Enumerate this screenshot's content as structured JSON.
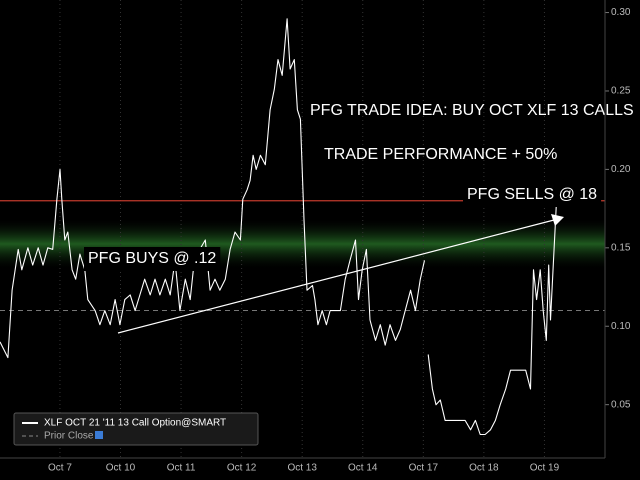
{
  "chart_data": {
    "type": "line",
    "annotations": [
      "PFG TRADE IDEA: BUY OCT XLF 13 CALLS",
      "TRADE PERFORMANCE + 50%",
      "PFG SELLS @ 18",
      "PFG BUYS @ .12"
    ],
    "xlim": [
      -0.99,
      9.0
    ],
    "xticks": [
      {
        "value": 0,
        "label": "Oct 7"
      },
      {
        "value": 1,
        "label": "Oct 10"
      },
      {
        "value": 2,
        "label": "Oct 11"
      },
      {
        "value": 3,
        "label": "Oct 12"
      },
      {
        "value": 4,
        "label": "Oct 13"
      },
      {
        "value": 5,
        "label": "Oct 14"
      },
      {
        "value": 6,
        "label": "Oct 17"
      },
      {
        "value": 7,
        "label": "Oct 18"
      },
      {
        "value": 8,
        "label": "Oct 19"
      }
    ],
    "ylim": [
      0.016,
      0.308
    ],
    "yticks": [
      {
        "value": 0.3,
        "label": "0.30"
      },
      0.25,
      {
        "value": 0.2,
        "label": "0.20"
      },
      0.15,
      {
        "value": 0.1,
        "label": "0.10"
      },
      0.05
    ],
    "grid": true,
    "background": "#000000",
    "reference_line": {
      "value": 0.18,
      "color": "#c0392b"
    },
    "highlight_band": {
      "from": 0.137,
      "to": 0.168,
      "color": "#1f5a1f"
    },
    "prior_close": {
      "name": "Prior Close",
      "value": 0.11,
      "color": "#777777"
    },
    "series": [
      {
        "name": "XLF OCT 21 '11 13 Call Option@SMART",
        "color": "#ffffff",
        "x": [
          -0.99,
          -0.86,
          -0.79,
          -0.69,
          -0.63,
          -0.53,
          -0.45,
          -0.36,
          -0.28,
          -0.2,
          -0.12,
          -0.05,
          0,
          0.03,
          0.08,
          0.13,
          0.2,
          0.26,
          0.33,
          0.41,
          0.46,
          0.58,
          0.66,
          0.74,
          0.83,
          0.91,
          0.99,
          1.07,
          1.16,
          1.24,
          1.32,
          1.4,
          1.49,
          1.57,
          1.65,
          1.74,
          1.82,
          1.9,
          1.98,
          2.07,
          2.15,
          2.23,
          2.31,
          2.4,
          2.48,
          2.56,
          2.64,
          2.73,
          2.81,
          2.89,
          2.98,
          3.02,
          3.09,
          3.14,
          3.19,
          3.24,
          3.31,
          3.39,
          3.47,
          3.54,
          3.6,
          3.67,
          3.75,
          3.8,
          3.87,
          3.92,
          3.97,
          4.0,
          4.03,
          4.08,
          4.17,
          4.21,
          4.26,
          4.33,
          4.4,
          4.46,
          4.55,
          4.63,
          4.71,
          4.79,
          4.88,
          4.93,
          4.99,
          5.06,
          5.12,
          5.21,
          5.29,
          5.37,
          5.45,
          5.54,
          5.62,
          5.7,
          5.79,
          5.87,
          5.95,
          6.02,
          6.03,
          6.08,
          6.15,
          6.21,
          6.28,
          6.36,
          6.45,
          6.53,
          6.61,
          6.69,
          6.78,
          6.86,
          6.94,
          7.02,
          7.11,
          7.19,
          7.27,
          7.36,
          7.44,
          7.52,
          7.6,
          7.69,
          7.77,
          7.82,
          7.87,
          7.93,
          7.98,
          8.03,
          8.07,
          8.1,
          8.15,
          8.2
        ],
        "values": [
          0.09,
          0.08,
          0.123,
          0.149,
          0.136,
          0.15,
          0.139,
          0.15,
          0.139,
          0.15,
          0.149,
          0.181,
          0.2,
          0.181,
          0.155,
          0.16,
          0.136,
          0.13,
          0.146,
          0.136,
          0.117,
          0.11,
          0.101,
          0.11,
          0.101,
          0.117,
          0.101,
          0.117,
          0.12,
          0.11,
          0.12,
          0.13,
          0.12,
          0.13,
          0.12,
          0.13,
          0.12,
          0.142,
          0.11,
          0.13,
          0.117,
          0.146,
          0.149,
          0.155,
          0.123,
          0.13,
          0.123,
          0.13,
          0.149,
          0.16,
          0.155,
          0.181,
          0.187,
          0.193,
          0.209,
          0.2,
          0.209,
          0.203,
          0.238,
          0.251,
          0.27,
          0.26,
          0.296,
          0.264,
          0.27,
          0.238,
          0.232,
          0.2,
          0.168,
          0.123,
          0.126,
          0.117,
          0.101,
          0.11,
          0.101,
          0.11,
          0.11,
          0.11,
          0.13,
          0.142,
          0.155,
          0.117,
          0.136,
          0.149,
          0.104,
          0.091,
          0.101,
          0.088,
          0.101,
          0.091,
          0.098,
          0.11,
          0.123,
          0.11,
          0.13,
          0.142,
          null,
          0.082,
          0.06,
          0.05,
          0.053,
          0.04,
          0.04,
          0.04,
          0.04,
          0.04,
          0.034,
          0.04,
          0.031,
          0.031,
          0.034,
          0.04,
          0.05,
          0.06,
          0.072,
          0.072,
          0.072,
          0.072,
          0.06,
          0.136,
          0.117,
          0.136,
          0.11,
          0.091,
          0.139,
          0.104,
          0.142,
          0.181
        ]
      }
    ]
  }
}
